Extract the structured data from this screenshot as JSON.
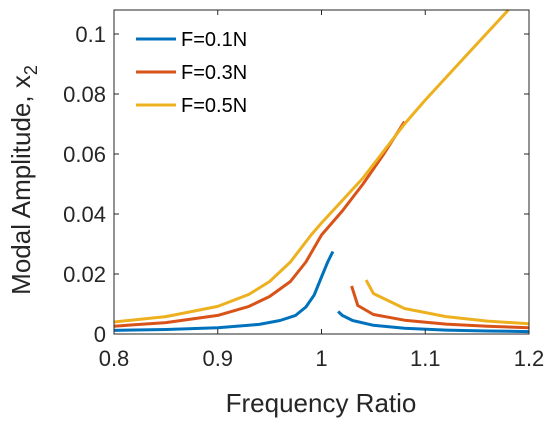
{
  "chart_data": {
    "type": "line",
    "xlabel": "Frequency Ratio",
    "ylabel": "Modal Amplitude, x",
    "ylabel_subscript": "2",
    "xlim": [
      0.8,
      1.2
    ],
    "ylim": [
      0,
      0.108
    ],
    "x_ticks": [
      "0.8",
      "0.9",
      "1",
      "1.1",
      "1.2"
    ],
    "y_ticks": [
      "0",
      "0.02",
      "0.04",
      "0.06",
      "0.08",
      "0.1"
    ],
    "x_tick_values": [
      0.8,
      0.9,
      1.0,
      1.1,
      1.2
    ],
    "y_tick_values": [
      0,
      0.02,
      0.04,
      0.06,
      0.08,
      0.1
    ],
    "grid": false,
    "legend_position": "top-left",
    "series": [
      {
        "name": "F=0.1N",
        "color": "#0072BD",
        "segments": [
          [
            [
              0.8,
              0.0012
            ],
            [
              0.85,
              0.0015
            ],
            [
              0.9,
              0.0021
            ],
            [
              0.94,
              0.0032
            ],
            [
              0.96,
              0.0045
            ],
            [
              0.975,
              0.0062
            ],
            [
              0.985,
              0.009
            ],
            [
              0.993,
              0.013
            ],
            [
              1.0,
              0.019
            ],
            [
              1.006,
              0.024
            ],
            [
              1.011,
              0.0275
            ]
          ],
          [
            [
              1.016,
              0.0075
            ],
            [
              1.02,
              0.0062
            ],
            [
              1.03,
              0.0045
            ],
            [
              1.05,
              0.0029
            ],
            [
              1.08,
              0.0019
            ],
            [
              1.12,
              0.0013
            ],
            [
              1.16,
              0.001
            ],
            [
              1.2,
              0.0008
            ]
          ]
        ]
      },
      {
        "name": "F=0.3N",
        "color": "#D95319",
        "segments": [
          [
            [
              0.8,
              0.0026
            ],
            [
              0.85,
              0.0038
            ],
            [
              0.9,
              0.0062
            ],
            [
              0.93,
              0.0092
            ],
            [
              0.95,
              0.0125
            ],
            [
              0.97,
              0.0175
            ],
            [
              0.985,
              0.024
            ],
            [
              1.0,
              0.033
            ],
            [
              1.02,
              0.041
            ],
            [
              1.04,
              0.05
            ],
            [
              1.06,
              0.06
            ],
            [
              1.08,
              0.0708
            ]
          ],
          [
            [
              1.029,
              0.016
            ],
            [
              1.035,
              0.0095
            ],
            [
              1.05,
              0.0065
            ],
            [
              1.08,
              0.0046
            ],
            [
              1.12,
              0.0033
            ],
            [
              1.16,
              0.0026
            ],
            [
              1.2,
              0.0021
            ]
          ]
        ]
      },
      {
        "name": "F=0.5N",
        "color": "#EDB120",
        "segments": [
          [
            [
              0.8,
              0.004
            ],
            [
              0.85,
              0.0058
            ],
            [
              0.9,
              0.0092
            ],
            [
              0.93,
              0.0132
            ],
            [
              0.95,
              0.0175
            ],
            [
              0.97,
              0.024
            ],
            [
              0.99,
              0.033
            ],
            [
              1.0,
              0.037
            ],
            [
              1.02,
              0.0445
            ],
            [
              1.04,
              0.052
            ],
            [
              1.06,
              0.061
            ],
            [
              1.08,
              0.07
            ],
            [
              1.1,
              0.078
            ],
            [
              1.14,
              0.093
            ],
            [
              1.18,
              0.108
            ]
          ],
          [
            [
              1.043,
              0.018
            ],
            [
              1.05,
              0.0135
            ],
            [
              1.08,
              0.0085
            ],
            [
              1.12,
              0.0058
            ],
            [
              1.16,
              0.0043
            ],
            [
              1.2,
              0.0034
            ]
          ]
        ]
      }
    ]
  }
}
